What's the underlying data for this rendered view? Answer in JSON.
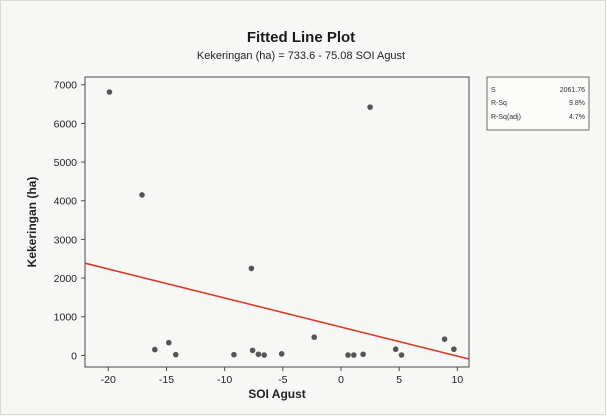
{
  "chart_data": {
    "type": "scatter",
    "title": "Fitted Line Plot",
    "subtitle": "Kekeringan (ha) = 733.6 - 75.08 SOI Agust",
    "xlabel": "SOI Agust",
    "ylabel": "Kekeringan (ha)",
    "xlim": [
      -22,
      11
    ],
    "ylim": [
      -300,
      7200
    ],
    "xticks": [
      -20,
      -15,
      -10,
      -5,
      0,
      5,
      10
    ],
    "yticks": [
      0,
      1000,
      2000,
      3000,
      4000,
      5000,
      6000,
      7000
    ],
    "xtick_labels": [
      "-20",
      "-15",
      "-10",
      "-5",
      "0",
      "5",
      "10"
    ],
    "ytick_labels": [
      "0",
      "1000",
      "2000",
      "3000",
      "4000",
      "5000",
      "6000",
      "7000"
    ],
    "fit": {
      "intercept": 733.6,
      "slope": -75.08
    },
    "stats": [
      {
        "label": "S",
        "value": "2061.76"
      },
      {
        "label": "R-Sq",
        "value": "9.8%"
      },
      {
        "label": "R-Sq(adj)",
        "value": "4.7%"
      }
    ],
    "point_color": "#555555",
    "line_color": "#d23c2c",
    "points": [
      {
        "x": -19.9,
        "y": 6810
      },
      {
        "x": -17.1,
        "y": 4150
      },
      {
        "x": -16.0,
        "y": 150
      },
      {
        "x": -14.8,
        "y": 330
      },
      {
        "x": -14.2,
        "y": 20
      },
      {
        "x": -9.2,
        "y": 20
      },
      {
        "x": -7.7,
        "y": 2250
      },
      {
        "x": -7.6,
        "y": 130
      },
      {
        "x": -7.1,
        "y": 30
      },
      {
        "x": -6.6,
        "y": 10
      },
      {
        "x": -5.1,
        "y": 40
      },
      {
        "x": -2.3,
        "y": 470
      },
      {
        "x": 0.6,
        "y": 10
      },
      {
        "x": 1.1,
        "y": 10
      },
      {
        "x": 1.9,
        "y": 30
      },
      {
        "x": 2.5,
        "y": 6420
      },
      {
        "x": 4.7,
        "y": 160
      },
      {
        "x": 5.2,
        "y": 10
      },
      {
        "x": 8.9,
        "y": 420
      },
      {
        "x": 9.7,
        "y": 160
      }
    ]
  }
}
